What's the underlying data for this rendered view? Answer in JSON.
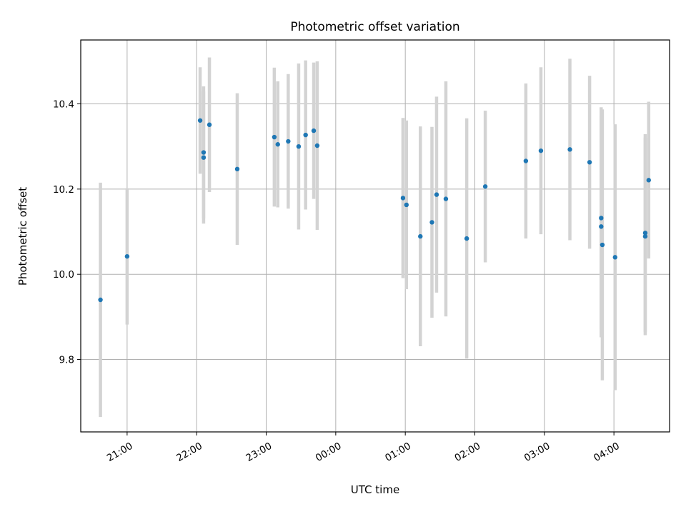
{
  "chart_data": {
    "type": "scatter",
    "title": "Photometric offset variation",
    "xlabel": "UTC time",
    "ylabel": "Photometric offset",
    "x_format": "HH:MM",
    "x_ticks": [
      "21:00",
      "22:00",
      "23:00",
      "00:00",
      "01:00",
      "02:00",
      "03:00",
      "04:00"
    ],
    "y_ticks": [
      "9.8",
      "10.0",
      "10.2",
      "10.4"
    ],
    "xlim": [
      "2000-01-01T20:20",
      "2000-01-02T04:48"
    ],
    "ylim": [
      9.63,
      10.55
    ],
    "grid": true,
    "colors": {
      "point": "#1f77b4",
      "errorbar": "#d3d3d3",
      "grid": "#b0b0b0"
    },
    "series": [
      {
        "points": [
          {
            "x": "2000-01-01T20:37",
            "y": 9.94,
            "yerr": 0.275
          },
          {
            "x": "2000-01-01T21:00",
            "y": 10.042,
            "yerr": 0.16
          },
          {
            "x": "2000-01-01T22:03",
            "y": 10.361,
            "yerr": 0.125
          },
          {
            "x": "2000-01-01T22:06",
            "y": 10.286,
            "yerr": 0.155
          },
          {
            "x": "2000-01-01T22:06",
            "y": 10.274,
            "yerr": 0.155
          },
          {
            "x": "2000-01-01T22:11",
            "y": 10.351,
            "yerr": 0.158
          },
          {
            "x": "2000-01-01T22:35",
            "y": 10.247,
            "yerr": 0.178
          },
          {
            "x": "2000-01-01T23:07",
            "y": 10.322,
            "yerr": 0.163
          },
          {
            "x": "2000-01-01T23:10",
            "y": 10.305,
            "yerr": 0.148
          },
          {
            "x": "2000-01-01T23:19",
            "y": 10.312,
            "yerr": 0.158
          },
          {
            "x": "2000-01-01T23:28",
            "y": 10.3,
            "yerr": 0.195
          },
          {
            "x": "2000-01-01T23:34",
            "y": 10.327,
            "yerr": 0.175
          },
          {
            "x": "2000-01-01T23:41",
            "y": 10.337,
            "yerr": 0.16
          },
          {
            "x": "2000-01-01T23:44",
            "y": 10.302,
            "yerr": 0.198
          },
          {
            "x": "2000-01-02T00:58",
            "y": 10.179,
            "yerr": 0.188
          },
          {
            "x": "2000-01-02T01:01",
            "y": 10.163,
            "yerr": 0.198
          },
          {
            "x": "2000-01-02T01:13",
            "y": 10.089,
            "yerr": 0.258
          },
          {
            "x": "2000-01-02T01:23",
            "y": 10.122,
            "yerr": 0.224
          },
          {
            "x": "2000-01-02T01:27",
            "y": 10.187,
            "yerr": 0.23
          },
          {
            "x": "2000-01-02T01:35",
            "y": 10.177,
            "yerr": 0.276
          },
          {
            "x": "2000-01-02T01:53",
            "y": 10.084,
            "yerr": 0.282
          },
          {
            "x": "2000-01-02T02:09",
            "y": 10.206,
            "yerr": 0.178
          },
          {
            "x": "2000-01-02T02:44",
            "y": 10.266,
            "yerr": 0.182
          },
          {
            "x": "2000-01-02T02:57",
            "y": 10.29,
            "yerr": 0.196
          },
          {
            "x": "2000-01-02T03:22",
            "y": 10.293,
            "yerr": 0.213
          },
          {
            "x": "2000-01-02T03:39",
            "y": 10.263,
            "yerr": 0.203
          },
          {
            "x": "2000-01-02T03:49",
            "y": 10.132,
            "yerr": 0.26
          },
          {
            "x": "2000-01-02T03:49",
            "y": 10.112,
            "yerr": 0.26
          },
          {
            "x": "2000-01-02T03:50",
            "y": 10.069,
            "yerr": 0.318
          },
          {
            "x": "2000-01-02T04:01",
            "y": 10.04,
            "yerr": 0.312
          },
          {
            "x": "2000-01-02T04:27",
            "y": 10.097,
            "yerr": 0.232
          },
          {
            "x": "2000-01-02T04:27",
            "y": 10.089,
            "yerr": 0.232
          },
          {
            "x": "2000-01-02T04:30",
            "y": 10.221,
            "yerr": 0.184
          }
        ]
      }
    ]
  }
}
